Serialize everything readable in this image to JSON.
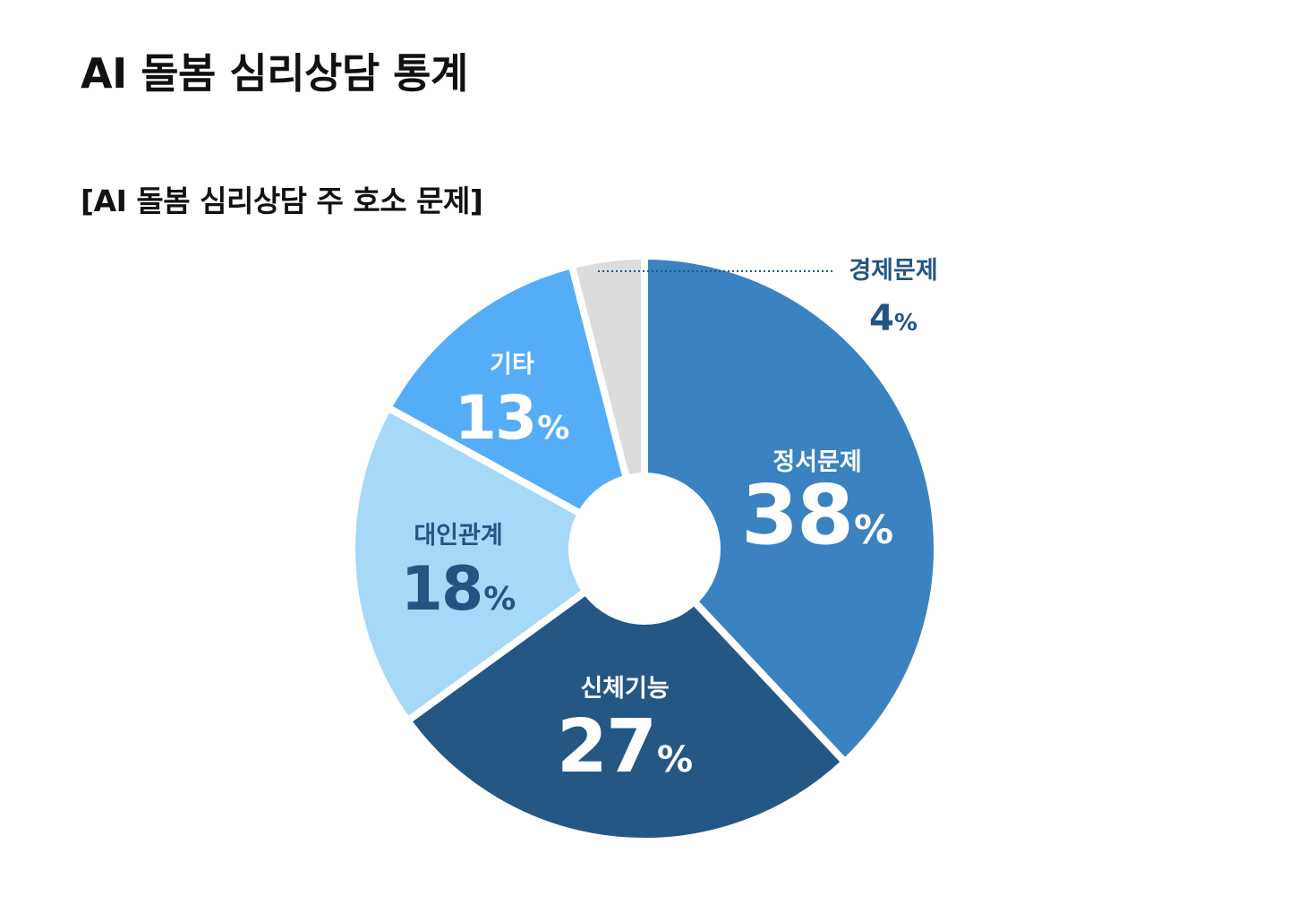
{
  "header": {
    "title": "AI 돌봄 심리상담 통계"
  },
  "chart_data": {
    "type": "pie",
    "donut": true,
    "title": "[AI 돌봄 심리상담 주 호소 문제]",
    "categories": [
      "정서문제",
      "신체기능",
      "대인관계",
      "기타",
      "경제문제"
    ],
    "values": [
      38,
      27,
      18,
      13,
      4
    ],
    "value_labels": [
      "38",
      "27",
      "18",
      "13",
      "4"
    ],
    "unit": "%",
    "order": "clockwise from top",
    "colors": [
      "#3a82c0",
      "#255785",
      "#a6d8f8",
      "#56adf7",
      "#dcdcdc"
    ],
    "label_colors": [
      "#ffffff",
      "#ffffff",
      "#245482",
      "#ffffff",
      "#245482"
    ],
    "legend": "none",
    "grid": false
  }
}
